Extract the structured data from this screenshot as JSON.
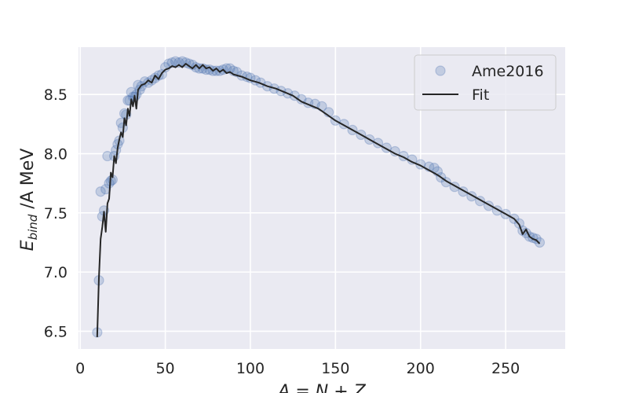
{
  "chart_data": {
    "type": "scatter",
    "xlabel": "A = N + Z",
    "ylabel": {
      "main": "E",
      "sub": "bind",
      "rest": " /A MeV"
    },
    "xlim": [
      -1,
      285
    ],
    "ylim": [
      6.35,
      8.9
    ],
    "x_ticks": [
      0,
      50,
      100,
      150,
      200,
      250
    ],
    "y_ticks": [
      6.5,
      7.0,
      7.5,
      8.0,
      8.5
    ],
    "grid": true,
    "legend_position": "top-right",
    "series": [
      {
        "name": "Ame2016",
        "kind": "scatter",
        "color": "#4c72b0",
        "points": [
          [
            10,
            6.49
          ],
          [
            11,
            6.93
          ],
          [
            12,
            7.68
          ],
          [
            13,
            7.47
          ],
          [
            14,
            7.52
          ],
          [
            15,
            7.7
          ],
          [
            16,
            7.98
          ],
          [
            17,
            7.75
          ],
          [
            18,
            7.77
          ],
          [
            19,
            7.78
          ],
          [
            20,
            7.98
          ],
          [
            21,
            8.03
          ],
          [
            22,
            8.08
          ],
          [
            23,
            8.11
          ],
          [
            24,
            8.26
          ],
          [
            25,
            8.22
          ],
          [
            26,
            8.34
          ],
          [
            27,
            8.33
          ],
          [
            28,
            8.45
          ],
          [
            29,
            8.45
          ],
          [
            30,
            8.52
          ],
          [
            31,
            8.48
          ],
          [
            32,
            8.48
          ],
          [
            33,
            8.5
          ],
          [
            34,
            8.58
          ],
          [
            35,
            8.54
          ],
          [
            36,
            8.57
          ],
          [
            38,
            8.61
          ],
          [
            40,
            8.6
          ],
          [
            42,
            8.62
          ],
          [
            44,
            8.64
          ],
          [
            46,
            8.66
          ],
          [
            48,
            8.67
          ],
          [
            50,
            8.73
          ],
          [
            52,
            8.76
          ],
          [
            54,
            8.77
          ],
          [
            56,
            8.78
          ],
          [
            58,
            8.77
          ],
          [
            60,
            8.78
          ],
          [
            62,
            8.77
          ],
          [
            64,
            8.76
          ],
          [
            66,
            8.75
          ],
          [
            68,
            8.73
          ],
          [
            70,
            8.72
          ],
          [
            72,
            8.72
          ],
          [
            74,
            8.71
          ],
          [
            76,
            8.71
          ],
          [
            78,
            8.7
          ],
          [
            80,
            8.7
          ],
          [
            82,
            8.7
          ],
          [
            84,
            8.71
          ],
          [
            86,
            8.72
          ],
          [
            88,
            8.72
          ],
          [
            90,
            8.7
          ],
          [
            92,
            8.69
          ],
          [
            95,
            8.66
          ],
          [
            98,
            8.65
          ],
          [
            100,
            8.64
          ],
          [
            103,
            8.62
          ],
          [
            106,
            8.6
          ],
          [
            110,
            8.57
          ],
          [
            114,
            8.55
          ],
          [
            118,
            8.53
          ],
          [
            122,
            8.51
          ],
          [
            126,
            8.49
          ],
          [
            130,
            8.46
          ],
          [
            134,
            8.43
          ],
          [
            138,
            8.42
          ],
          [
            142,
            8.4
          ],
          [
            146,
            8.35
          ],
          [
            150,
            8.28
          ],
          [
            155,
            8.25
          ],
          [
            160,
            8.2
          ],
          [
            165,
            8.16
          ],
          [
            170,
            8.12
          ],
          [
            175,
            8.09
          ],
          [
            180,
            8.05
          ],
          [
            185,
            8.02
          ],
          [
            190,
            7.98
          ],
          [
            195,
            7.95
          ],
          [
            200,
            7.91
          ],
          [
            205,
            7.89
          ],
          [
            208,
            7.88
          ],
          [
            210,
            7.85
          ],
          [
            212,
            7.8
          ],
          [
            215,
            7.76
          ],
          [
            220,
            7.72
          ],
          [
            225,
            7.68
          ],
          [
            230,
            7.64
          ],
          [
            235,
            7.6
          ],
          [
            240,
            7.56
          ],
          [
            245,
            7.52
          ],
          [
            250,
            7.49
          ],
          [
            255,
            7.45
          ],
          [
            258,
            7.41
          ],
          [
            260,
            7.35
          ],
          [
            262,
            7.33
          ],
          [
            264,
            7.3
          ],
          [
            266,
            7.29
          ],
          [
            268,
            7.28
          ],
          [
            270,
            7.25
          ]
        ]
      },
      {
        "name": "Fit",
        "kind": "line",
        "color": "#262626",
        "points": [
          [
            10,
            6.45
          ],
          [
            11,
            6.95
          ],
          [
            12,
            7.28
          ],
          [
            13,
            7.38
          ],
          [
            14,
            7.51
          ],
          [
            15,
            7.34
          ],
          [
            16,
            7.58
          ],
          [
            17,
            7.62
          ],
          [
            18,
            7.84
          ],
          [
            19,
            7.8
          ],
          [
            20,
            7.98
          ],
          [
            21,
            7.92
          ],
          [
            22,
            8.05
          ],
          [
            23,
            8.12
          ],
          [
            24,
            8.18
          ],
          [
            25,
            8.14
          ],
          [
            26,
            8.3
          ],
          [
            27,
            8.24
          ],
          [
            28,
            8.38
          ],
          [
            29,
            8.32
          ],
          [
            30,
            8.46
          ],
          [
            31,
            8.4
          ],
          [
            32,
            8.49
          ],
          [
            33,
            8.38
          ],
          [
            34,
            8.54
          ],
          [
            36,
            8.58
          ],
          [
            38,
            8.59
          ],
          [
            40,
            8.62
          ],
          [
            42,
            8.6
          ],
          [
            44,
            8.66
          ],
          [
            46,
            8.63
          ],
          [
            48,
            8.68
          ],
          [
            50,
            8.71
          ],
          [
            52,
            8.72
          ],
          [
            54,
            8.74
          ],
          [
            56,
            8.73
          ],
          [
            58,
            8.75
          ],
          [
            60,
            8.73
          ],
          [
            62,
            8.76
          ],
          [
            64,
            8.74
          ],
          [
            66,
            8.72
          ],
          [
            68,
            8.75
          ],
          [
            70,
            8.72
          ],
          [
            72,
            8.75
          ],
          [
            74,
            8.72
          ],
          [
            76,
            8.73
          ],
          [
            78,
            8.7
          ],
          [
            80,
            8.72
          ],
          [
            82,
            8.69
          ],
          [
            84,
            8.71
          ],
          [
            86,
            8.68
          ],
          [
            88,
            8.69
          ],
          [
            90,
            8.67
          ],
          [
            95,
            8.65
          ],
          [
            100,
            8.62
          ],
          [
            105,
            8.6
          ],
          [
            110,
            8.57
          ],
          [
            115,
            8.55
          ],
          [
            120,
            8.52
          ],
          [
            125,
            8.49
          ],
          [
            130,
            8.44
          ],
          [
            135,
            8.41
          ],
          [
            140,
            8.38
          ],
          [
            145,
            8.33
          ],
          [
            150,
            8.28
          ],
          [
            155,
            8.24
          ],
          [
            160,
            8.2
          ],
          [
            165,
            8.16
          ],
          [
            170,
            8.12
          ],
          [
            175,
            8.08
          ],
          [
            180,
            8.04
          ],
          [
            185,
            8.0
          ],
          [
            190,
            7.97
          ],
          [
            195,
            7.93
          ],
          [
            200,
            7.9
          ],
          [
            205,
            7.86
          ],
          [
            210,
            7.82
          ],
          [
            215,
            7.77
          ],
          [
            220,
            7.73
          ],
          [
            225,
            7.69
          ],
          [
            230,
            7.65
          ],
          [
            235,
            7.61
          ],
          [
            240,
            7.57
          ],
          [
            245,
            7.53
          ],
          [
            250,
            7.49
          ],
          [
            255,
            7.45
          ],
          [
            258,
            7.4
          ],
          [
            260,
            7.32
          ],
          [
            262,
            7.36
          ],
          [
            264,
            7.3
          ],
          [
            266,
            7.28
          ],
          [
            268,
            7.27
          ],
          [
            270,
            7.24
          ]
        ]
      }
    ]
  }
}
